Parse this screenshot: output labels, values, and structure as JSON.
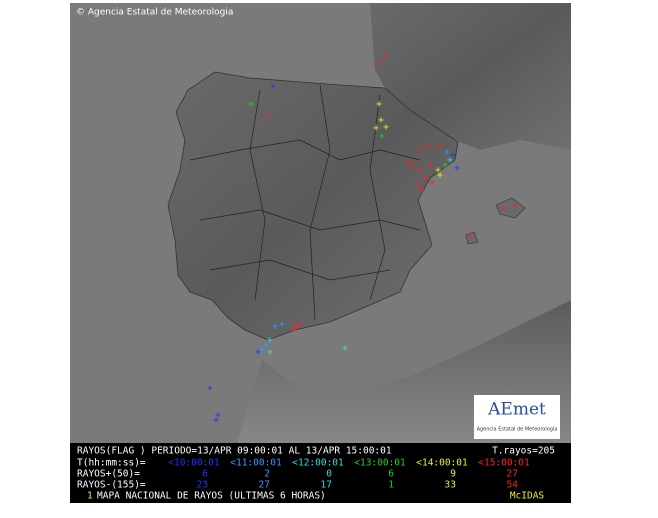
{
  "header": {
    "credit": "© Agencia Estatal de Meteorologia"
  },
  "logo": {
    "name": "AEmet",
    "subtitle": "Agencia Estatal de Meteorología"
  },
  "legend": {
    "title": "RAYOS(FLAG )  PERIODO=13/APR 09:00:01 AL 13/APR 15:00:01",
    "total": "T.rayos=205",
    "interval_label": "T(hh:mm:ss)=",
    "intervals": [
      {
        "label": "<10:00:01",
        "color": "#2233ff"
      },
      {
        "label": "<11:00:01",
        "color": "#3399ff"
      },
      {
        "label": "<12:00:01",
        "color": "#33dddd"
      },
      {
        "label": "<13:00:01",
        "color": "#22cc22"
      },
      {
        "label": "<14:00:01",
        "color": "#eeee22"
      },
      {
        "label": "<15:00:01",
        "color": "#ff2222"
      }
    ],
    "positive_label": "RAYOS+(50)=",
    "positive": [
      6,
      2,
      0,
      6,
      9,
      27
    ],
    "negative_label": "RAYOS-(155)=",
    "negative": [
      23,
      27,
      17,
      1,
      33,
      54
    ]
  },
  "footer": {
    "number": "1",
    "title": "MAPA NACIONAL DE RAYOS (ULTIMAS 6 HORAS)",
    "system": "McIDAS"
  }
}
